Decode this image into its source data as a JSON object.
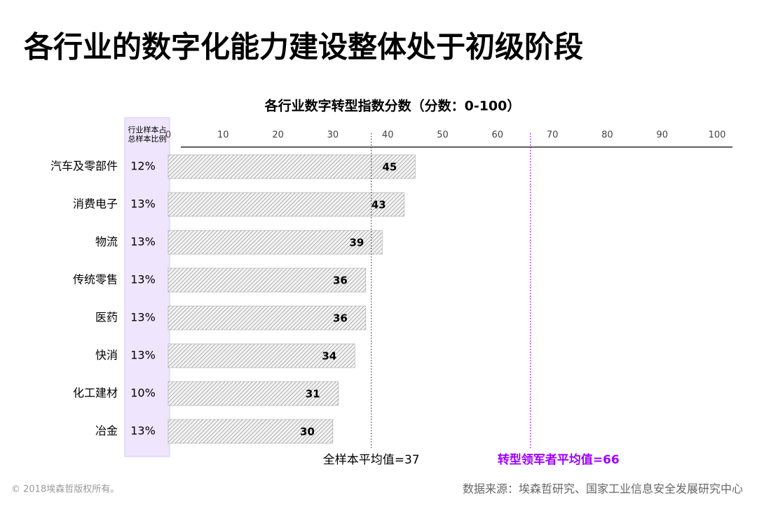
{
  "title": "各行业的数字化能力建设整体处于初级阶段",
  "chart_data": {
    "type": "bar",
    "orientation": "horizontal",
    "title": "各行业数字转型指数分数（分数：0-100）",
    "categories": [
      "汽车及零部件",
      "消费电子",
      "物流",
      "传统零售",
      "医药",
      "快消",
      "化工建材",
      "冶金"
    ],
    "values": [
      45,
      43,
      39,
      36,
      36,
      34,
      31,
      30
    ],
    "color": "#9a9a9a",
    "share_header": [
      "行业样本占",
      "总样本比例"
    ],
    "share_labels": [
      "12%",
      "13%",
      "13%",
      "13%",
      "13%",
      "13%",
      "10%",
      "13%"
    ],
    "xlim": [
      0,
      100
    ],
    "xticks": [
      0,
      10,
      20,
      30,
      40,
      50,
      60,
      70,
      80,
      90,
      100
    ],
    "reference_lines": [
      {
        "value": 37,
        "label": "全样本平均值=37",
        "color": "#555555"
      },
      {
        "value": 66,
        "label": "转型领军者平均值=66",
        "color": "#a100ff"
      }
    ]
  },
  "copyright": "© 2018埃森哲版权所有。",
  "source": "数据来源：埃森哲研究、国家工业信息安全发展研究中心"
}
